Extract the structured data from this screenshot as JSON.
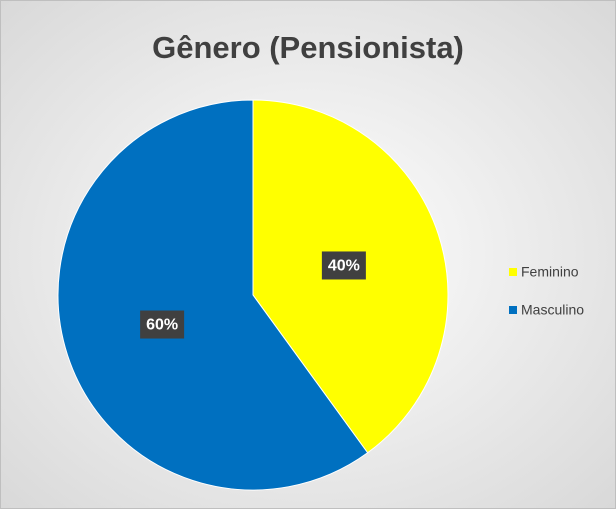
{
  "chart_data": {
    "type": "pie",
    "title": "Gênero (Pensionista)",
    "categories": [
      "Feminino",
      "Masculino"
    ],
    "values": [
      40,
      60
    ],
    "value_labels": [
      "40%",
      "60%"
    ],
    "colors": [
      "#ffff00",
      "#0070c0"
    ],
    "legend": "right"
  }
}
